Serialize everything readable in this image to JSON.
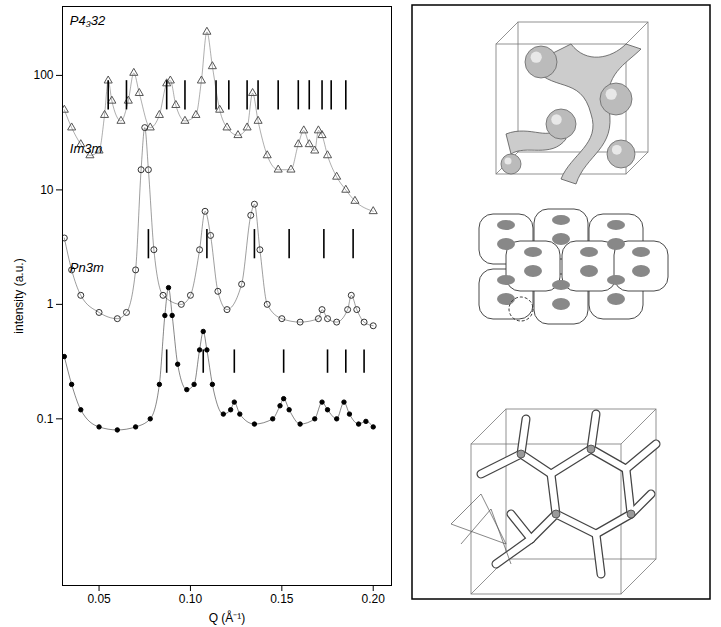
{
  "chart_data": {
    "type": "scatter",
    "log": "y",
    "xlabel": "Q (Å⁻¹)",
    "ylabel": "intensity (a.u.)",
    "xlim": [
      0.03,
      0.21
    ],
    "ylim": [
      0.0035,
      400
    ],
    "xticks": [
      {
        "value": 0.05,
        "label": "0.05"
      },
      {
        "value": 0.1,
        "label": "0.10"
      },
      {
        "value": 0.15,
        "label": "0.15"
      },
      {
        "value": 0.2,
        "label": "0.20"
      }
    ],
    "yticks": [
      0.1,
      1,
      10,
      100
    ],
    "series": [
      {
        "name": "P4₃32",
        "color": "#555555",
        "marker": "triangle",
        "x": [
          0.031,
          0.035,
          0.04,
          0.045,
          0.05,
          0.053,
          0.055,
          0.057,
          0.062,
          0.066,
          0.069,
          0.072,
          0.078,
          0.083,
          0.087,
          0.089,
          0.092,
          0.097,
          0.103,
          0.106,
          0.109,
          0.112,
          0.116,
          0.12,
          0.126,
          0.131,
          0.134,
          0.137,
          0.142,
          0.148,
          0.155,
          0.159,
          0.162,
          0.165,
          0.168,
          0.17,
          0.172,
          0.175,
          0.18,
          0.185,
          0.19,
          0.2
        ],
        "values": [
          50,
          35,
          25,
          20,
          22,
          45,
          90,
          60,
          40,
          60,
          105,
          70,
          35,
          45,
          85,
          90,
          55,
          40,
          45,
          90,
          240,
          120,
          50,
          35,
          30,
          35,
          70,
          40,
          20,
          15,
          15,
          25,
          33,
          25,
          22,
          33,
          30,
          20,
          13,
          10,
          8,
          6.5
        ],
        "peaks": [
          0.055,
          0.065,
          0.087,
          0.097,
          0.114,
          0.121,
          0.131,
          0.137,
          0.148,
          0.159,
          0.165,
          0.172,
          0.177,
          0.185
        ],
        "peak_range": [
          50,
          90
        ]
      },
      {
        "name": "Im3m",
        "color": "#333333",
        "marker": "circle",
        "x": [
          0.031,
          0.035,
          0.04,
          0.05,
          0.06,
          0.065,
          0.07,
          0.073,
          0.075,
          0.077,
          0.08,
          0.085,
          0.095,
          0.1,
          0.105,
          0.108,
          0.111,
          0.115,
          0.12,
          0.128,
          0.133,
          0.135,
          0.138,
          0.142,
          0.15,
          0.16,
          0.17,
          0.172,
          0.175,
          0.18,
          0.186,
          0.188,
          0.191,
          0.195,
          0.2
        ],
        "values": [
          3.8,
          2,
          1.2,
          0.85,
          0.75,
          0.85,
          2,
          15,
          35,
          15,
          3,
          1.2,
          1,
          1.2,
          3,
          6.5,
          4,
          1.3,
          0.9,
          1.5,
          6,
          7.5,
          3,
          1,
          0.75,
          0.7,
          0.75,
          0.9,
          0.75,
          0.7,
          0.9,
          1.2,
          0.9,
          0.7,
          0.65
        ],
        "peaks": [
          0.077,
          0.109,
          0.135,
          0.154,
          0.173,
          0.189
        ],
        "peak_range": [
          2.5,
          4.5
        ]
      },
      {
        "name": "Pn3m",
        "color": "#000000",
        "marker": "dot",
        "x": [
          0.031,
          0.035,
          0.04,
          0.05,
          0.06,
          0.07,
          0.078,
          0.083,
          0.086,
          0.088,
          0.09,
          0.093,
          0.098,
          0.102,
          0.105,
          0.107,
          0.109,
          0.112,
          0.118,
          0.122,
          0.124,
          0.127,
          0.135,
          0.145,
          0.149,
          0.151,
          0.154,
          0.16,
          0.168,
          0.172,
          0.175,
          0.18,
          0.184,
          0.187,
          0.192,
          0.196,
          0.2
        ],
        "values": [
          0.35,
          0.2,
          0.12,
          0.085,
          0.08,
          0.085,
          0.1,
          0.2,
          0.8,
          1.4,
          0.8,
          0.3,
          0.18,
          0.2,
          0.4,
          0.58,
          0.4,
          0.2,
          0.11,
          0.12,
          0.14,
          0.11,
          0.09,
          0.1,
          0.13,
          0.15,
          0.12,
          0.09,
          0.1,
          0.14,
          0.12,
          0.1,
          0.14,
          0.11,
          0.09,
          0.095,
          0.085
        ],
        "peaks": [
          0.087,
          0.107,
          0.124,
          0.151,
          0.175,
          0.185,
          0.195
        ],
        "peak_range": [
          0.25,
          0.4
        ]
      }
    ]
  }
}
